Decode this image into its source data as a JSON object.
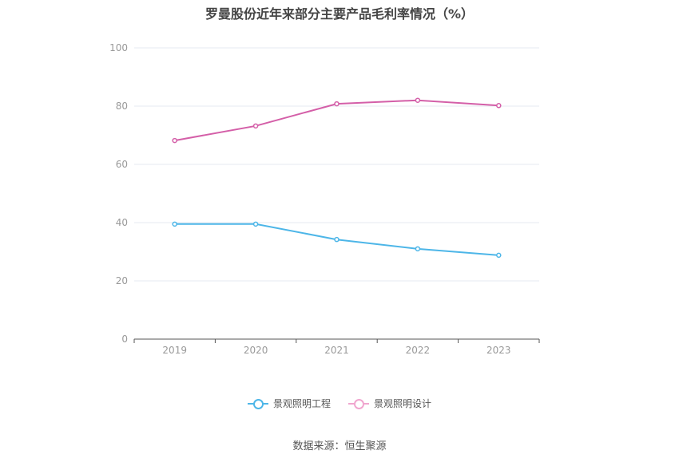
{
  "chart_data": {
    "type": "line",
    "title": "罗曼股份近年来部分主要产品毛利率情况（%）",
    "categories": [
      "2019",
      "2020",
      "2021",
      "2022",
      "2023"
    ],
    "series": [
      {
        "name": "景观照明工程",
        "color": "#4db6e8",
        "values": [
          39.5,
          39.5,
          34.2,
          31.0,
          28.8
        ]
      },
      {
        "name": "景观照明设计",
        "color": "#d45fa8",
        "values": [
          68.2,
          73.2,
          80.8,
          82.0,
          80.2
        ]
      }
    ],
    "ylim": [
      0,
      100
    ],
    "yticks": [
      0,
      20,
      40,
      60,
      80,
      100
    ],
    "grid": true,
    "legend_position": "bottom-center"
  },
  "source": "数据来源：恒生聚源",
  "colors": {
    "legend_text": "#555555",
    "axis_text": "#999999",
    "grid": "#e6e9f0",
    "axis": "#555555"
  }
}
